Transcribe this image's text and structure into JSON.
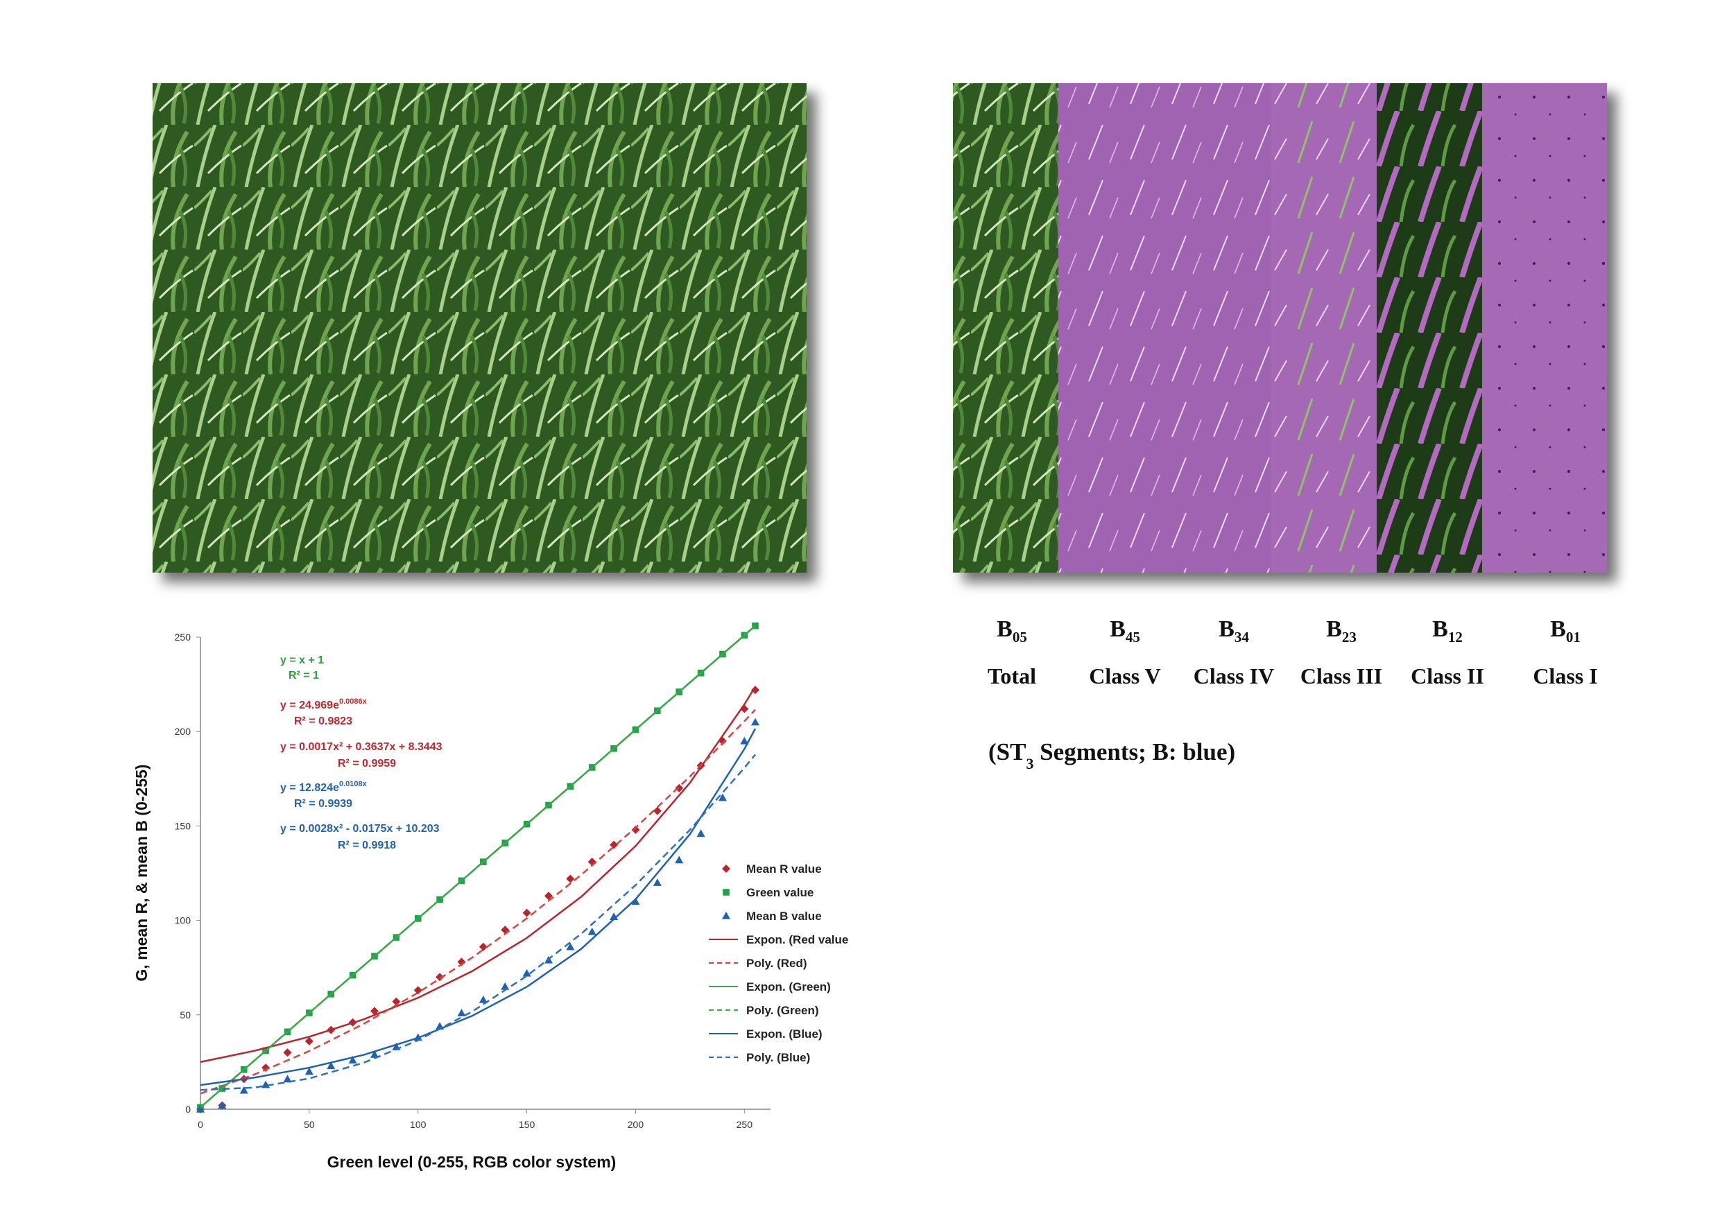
{
  "panel_labels": [
    {
      "band": {
        "main": "B",
        "sub": "05"
      },
      "class": "Total"
    },
    {
      "band": {
        "main": "B",
        "sub": "45"
      },
      "class": "Class V"
    },
    {
      "band": {
        "main": "B",
        "sub": "34"
      },
      "class": "Class IV"
    },
    {
      "band": {
        "main": "B",
        "sub": "23"
      },
      "class": "Class III"
    },
    {
      "band": {
        "main": "B",
        "sub": "12"
      },
      "class": "Class II"
    },
    {
      "band": {
        "main": "B",
        "sub": "01"
      },
      "class": "Class I"
    }
  ],
  "caption": {
    "before": "(ST",
    "sub": "3",
    "after": " Segments; B: blue)"
  },
  "chart_data": {
    "type": "scatter",
    "x_label": "Green level (0-255, RGB color system)",
    "y_label": "G, mean R, & mean B (0-255)",
    "xlim": [
      0,
      262
    ],
    "ylim": [
      0,
      250
    ],
    "xticks": [
      0,
      50,
      100,
      150,
      200,
      250
    ],
    "yticks": [
      0,
      50,
      100,
      150,
      200,
      250
    ],
    "legend": "right",
    "annotations": [
      {
        "text": "y = x + 1",
        "color": "#2e9e3e"
      },
      {
        "text": "R² = 1",
        "color": "#2e9e3e"
      },
      {
        "text": "y = 24.969e",
        "sup": "0.0086x",
        "color": "#c0282d"
      },
      {
        "text": "R² = 0.9823",
        "color": "#c0282d"
      },
      {
        "text": "y = 0.0017x² + 0.3637x + 8.3443",
        "color": "#c0282d"
      },
      {
        "text": "R² = 0.9959",
        "color": "#c0282d"
      },
      {
        "text": "y = 12.824e",
        "sup": "0.0108x",
        "color": "#1f62b4"
      },
      {
        "text": "R² = 0.9939",
        "color": "#1f62b4"
      },
      {
        "text": "y = 0.0028x² - 0.0175x + 10.203",
        "color": "#1f62b4"
      },
      {
        "text": "R² = 0.9918",
        "color": "#1f62b4"
      }
    ],
    "series": [
      {
        "name": "Mean R value",
        "color": "#b8262b",
        "marker": "diamond",
        "x": [
          0,
          10,
          20,
          30,
          40,
          50,
          60,
          70,
          80,
          90,
          100,
          110,
          120,
          130,
          140,
          150,
          160,
          170,
          180,
          190,
          200,
          210,
          220,
          230,
          240,
          250,
          255
        ],
        "values": [
          0,
          2,
          16,
          22,
          30,
          36,
          42,
          46,
          52,
          57,
          63,
          70,
          78,
          86,
          95,
          104,
          113,
          122,
          131,
          140,
          148,
          158,
          170,
          182,
          195,
          212,
          222
        ]
      },
      {
        "name": "Green value",
        "color": "#1fa34a",
        "marker": "square",
        "x": [
          0,
          10,
          20,
          30,
          40,
          50,
          60,
          70,
          80,
          90,
          100,
          110,
          120,
          130,
          140,
          150,
          160,
          170,
          180,
          190,
          200,
          210,
          220,
          230,
          240,
          250,
          255
        ],
        "values": [
          1,
          11,
          21,
          31,
          41,
          51,
          61,
          71,
          81,
          91,
          101,
          111,
          121,
          131,
          141,
          151,
          161,
          171,
          181,
          191,
          201,
          211,
          221,
          231,
          241,
          251,
          256
        ]
      },
      {
        "name": "Mean B value",
        "color": "#1f62b4",
        "marker": "triangle",
        "x": [
          0,
          10,
          20,
          30,
          40,
          50,
          60,
          70,
          80,
          90,
          100,
          110,
          120,
          130,
          140,
          150,
          160,
          170,
          180,
          190,
          200,
          210,
          220,
          230,
          240,
          250,
          255
        ],
        "values": [
          0,
          2,
          10,
          13,
          16,
          20,
          23,
          26,
          29,
          33,
          38,
          44,
          51,
          58,
          65,
          72,
          79,
          86,
          94,
          102,
          110,
          120,
          132,
          146,
          165,
          195,
          205
        ]
      },
      {
        "name": "Expon. (Red value",
        "color": "#b8262b",
        "line": "solid",
        "x": [
          0,
          25,
          50,
          75,
          100,
          125,
          150,
          175,
          200,
          225,
          250,
          255
        ],
        "values": [
          25.0,
          31.0,
          38.4,
          47.6,
          59.0,
          73.2,
          90.7,
          112.5,
          139.4,
          172.9,
          214.4,
          223.8
        ]
      },
      {
        "name": "Poly. (Red)",
        "color": "#d9443f",
        "line": "dashed",
        "x": [
          0,
          25,
          50,
          75,
          100,
          125,
          150,
          175,
          200,
          225,
          250,
          255
        ],
        "values": [
          8.3,
          18.5,
          30.8,
          45.2,
          61.7,
          80.4,
          101.1,
          124.1,
          149.1,
          176.2,
          205.5,
          211.6
        ]
      },
      {
        "name": "Expon. (Green)",
        "color": "#3aa84a",
        "line": "solid",
        "x": [
          0,
          255
        ],
        "values": [
          1,
          256
        ]
      },
      {
        "name": "Poly. (Green)",
        "color": "#3aa84a",
        "line": "dashed",
        "x": [
          0,
          255
        ],
        "values": [
          1,
          256
        ]
      },
      {
        "name": "Expon. (Blue)",
        "color": "#1f62b4",
        "line": "solid",
        "x": [
          0,
          25,
          50,
          75,
          100,
          125,
          150,
          175,
          200,
          225,
          250,
          255
        ],
        "values": [
          12.8,
          16.8,
          22.0,
          28.8,
          37.8,
          49.5,
          64.8,
          84.9,
          111.2,
          145.7,
          190.8,
          201.5
        ]
      },
      {
        "name": "Poly. (Blue)",
        "color": "#2f6fc0",
        "line": "dashed",
        "x": [
          0,
          25,
          50,
          75,
          100,
          125,
          150,
          175,
          200,
          225,
          250,
          255
        ],
        "values": [
          10.2,
          11.5,
          16.3,
          24.6,
          36.5,
          51.8,
          70.6,
          92.9,
          118.7,
          148.0,
          180.8,
          187.8
        ]
      }
    ]
  }
}
